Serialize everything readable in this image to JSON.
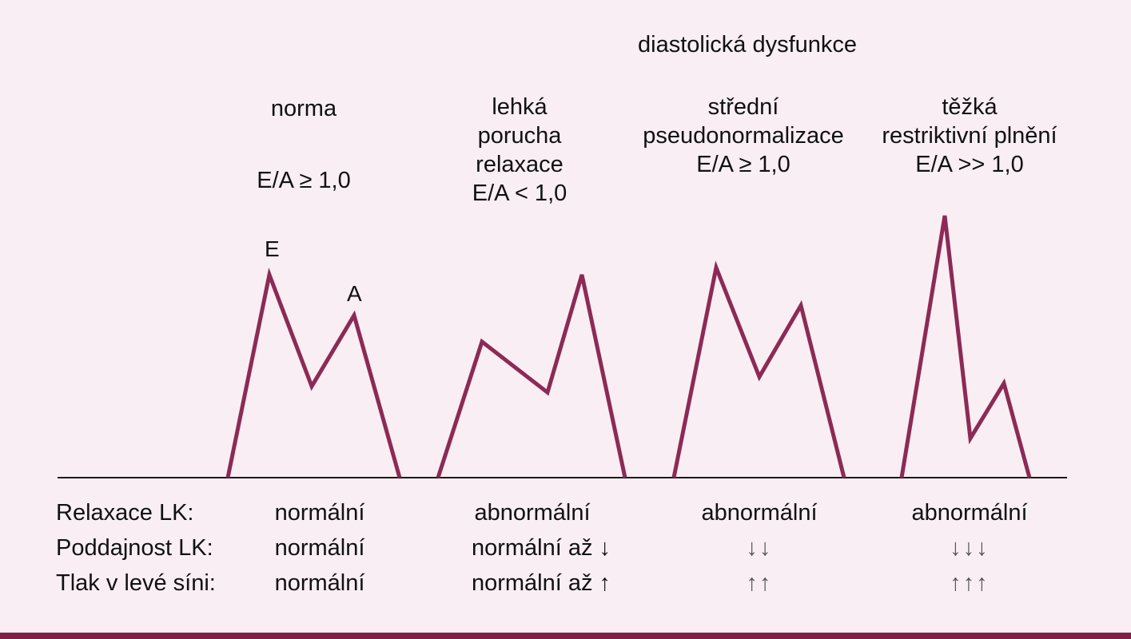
{
  "header": {
    "title": "diastolická dysfunkce"
  },
  "colors": {
    "curve": "#8c2a55",
    "baseline": "#1a1a1a",
    "background": "#f9eef4",
    "border": "#7d2147"
  },
  "columns": [
    {
      "id": "norma",
      "lines": [
        "norma",
        "",
        "E/A ≥ 1,0"
      ]
    },
    {
      "id": "lehka",
      "lines": [
        "lehká",
        "porucha",
        "relaxace",
        "E/A < 1,0"
      ]
    },
    {
      "id": "stredni",
      "lines": [
        "střední",
        "pseudonormalizace",
        "E/A ≥ 1,0"
      ]
    },
    {
      "id": "tezka",
      "lines": [
        "těžká",
        "restriktivní plnění",
        "E/A >> 1,0"
      ]
    }
  ],
  "peak_labels": {
    "e": "E",
    "a": "A"
  },
  "rows": [
    {
      "label": "Relaxace LK:",
      "values": [
        "normální",
        "abnormální",
        "abnormální",
        "abnormální"
      ]
    },
    {
      "label": "Poddajnost LK:",
      "values": [
        "normální",
        "normální až ↓",
        "↓↓",
        "↓↓↓"
      ]
    },
    {
      "label": "Tlak v levé síni:",
      "values": [
        "normální",
        "normální až ↑",
        "↑↑",
        "↑↑↑"
      ]
    }
  ],
  "waveforms": [
    {
      "name": "norma",
      "E": 1.0,
      "A": 0.8,
      "trough": 0.45
    },
    {
      "name": "lehká porucha relaxace",
      "E": 0.67,
      "A": 1.0,
      "trough": 0.42
    },
    {
      "name": "střední pseudonormalizace",
      "E": 1.0,
      "A": 0.82,
      "trough": 0.48
    },
    {
      "name": "těžká restriktivní plnění",
      "E": 1.0,
      "A": 0.36,
      "trough": 0.15
    }
  ]
}
